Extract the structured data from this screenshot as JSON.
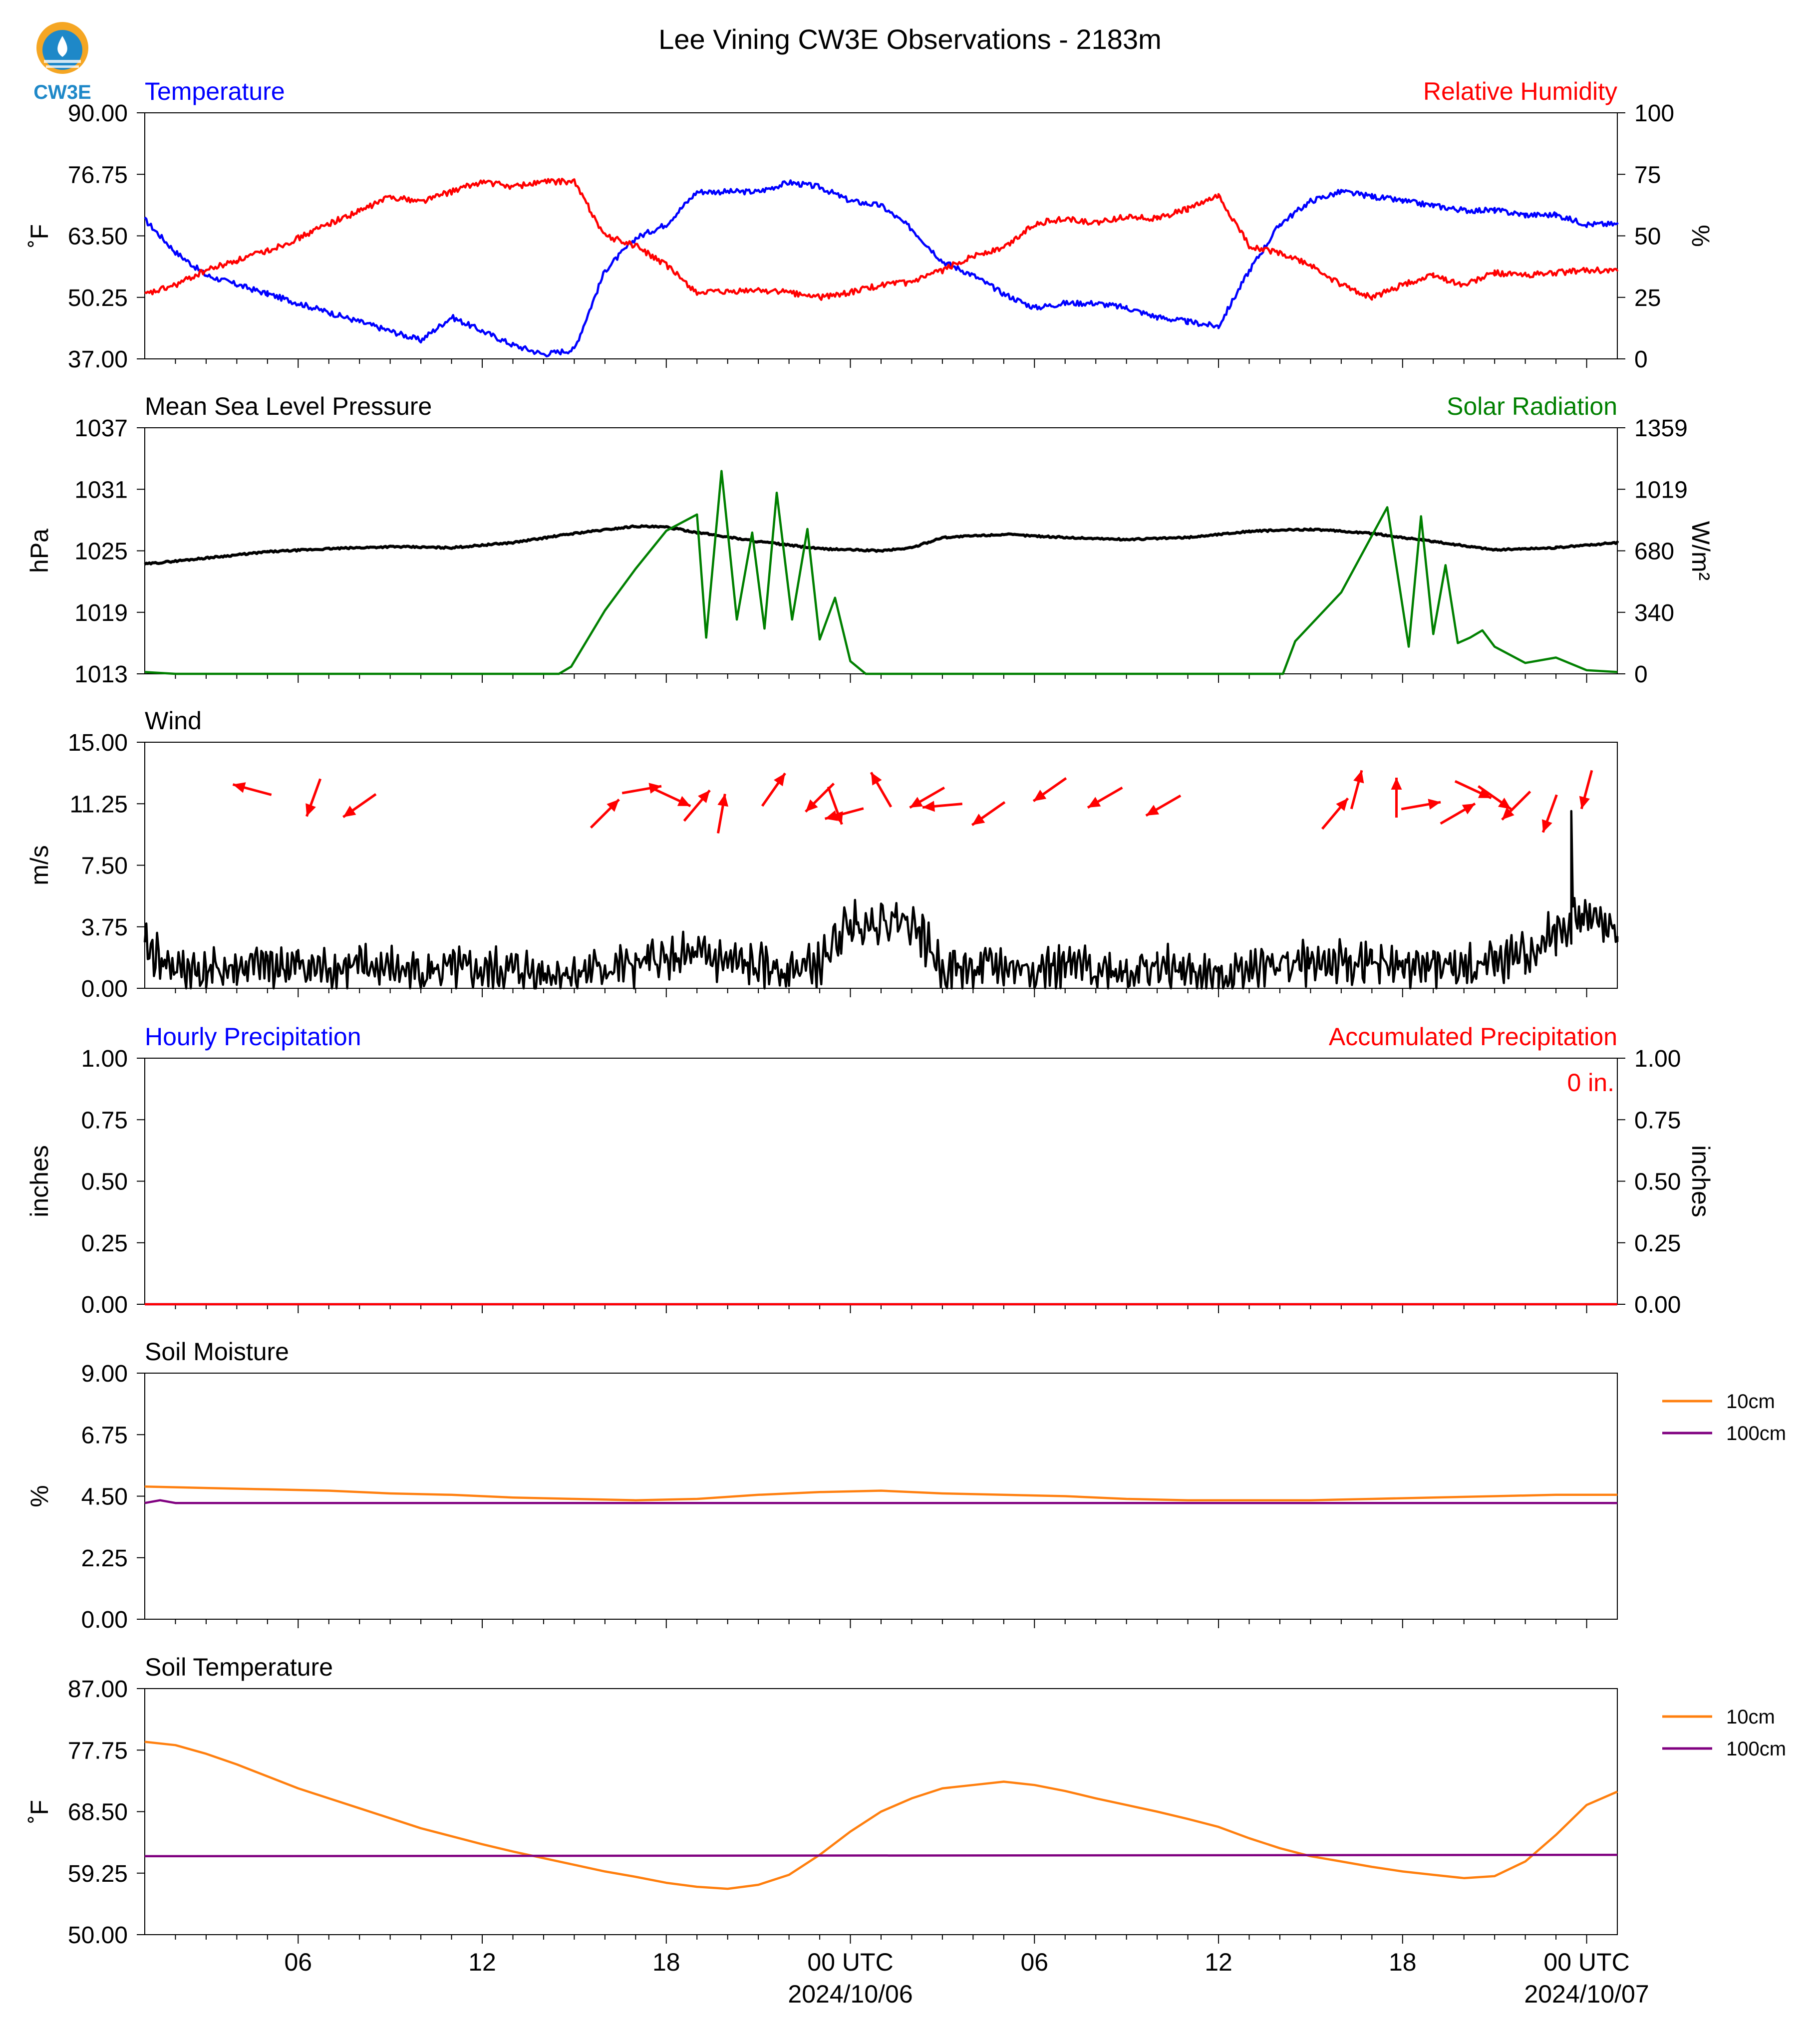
{
  "figure": {
    "title": "Lee Vining CW3E Observations - 2183m",
    "logo_text": "CW3E",
    "time_axis": {
      "tick_labels": [
        "06",
        "12",
        "18",
        "00 UTC",
        "06",
        "12",
        "18",
        "00 UTC"
      ],
      "date_labels": [
        "2024/10/06",
        "2024/10/07"
      ]
    }
  },
  "colors": {
    "temperature": "#0000ff",
    "humidity": "#ff0000",
    "pressure": "#000000",
    "solar": "#008000",
    "wind_speed": "#000000",
    "wind_arrows": "#ff0000",
    "soil_10cm": "#ff7f0e",
    "soil_100cm": "#800080",
    "logo": "#1e88c8"
  },
  "chart_data": [
    {
      "id": "temp_rh",
      "type": "line",
      "title_left": "Temperature",
      "title_right": "Relative Humidity",
      "ylabel": "˚F",
      "ylabel_right": "%",
      "ylim": [
        37.0,
        90.0
      ],
      "ylim_right": [
        0,
        100
      ],
      "yticks": [
        "37.00",
        "50.25",
        "63.50",
        "76.75",
        "90.00"
      ],
      "yticks_right": [
        "0",
        "25",
        "50",
        "75",
        "100"
      ],
      "xlim": [
        1,
        49
      ],
      "grid": false,
      "series": [
        {
          "name": "Temperature",
          "axis": "left",
          "x": [
            1,
            2,
            3,
            4,
            5,
            6,
            7,
            8,
            9,
            10,
            11,
            12,
            13,
            14,
            15,
            16,
            17,
            18,
            19,
            20,
            21,
            22,
            23,
            24,
            25,
            26,
            27,
            28,
            29,
            30,
            31,
            32,
            33,
            34,
            35,
            36,
            37,
            38,
            39,
            40,
            41,
            42,
            43,
            44,
            45,
            46,
            47,
            48,
            49
          ],
          "values": [
            67,
            60,
            55,
            53,
            51,
            49,
            47,
            45,
            43,
            41,
            46,
            43,
            40,
            38,
            39,
            56,
            63,
            66,
            73,
            73,
            73,
            75,
            74,
            71,
            70,
            65,
            58,
            55,
            51,
            48,
            49,
            49,
            48,
            46,
            45,
            44,
            56,
            66,
            71,
            73,
            72,
            71,
            70,
            69,
            69,
            68,
            68,
            66,
            66
          ]
        },
        {
          "name": "Relative Humidity",
          "axis": "right",
          "x": [
            1,
            2,
            3,
            4,
            5,
            6,
            7,
            8,
            9,
            10,
            11,
            12,
            13,
            14,
            15,
            16,
            17,
            18,
            19,
            20,
            21,
            22,
            23,
            24,
            25,
            26,
            27,
            28,
            29,
            30,
            31,
            32,
            33,
            34,
            35,
            36,
            37,
            38,
            39,
            40,
            41,
            42,
            43,
            44,
            45,
            46,
            47,
            48,
            49
          ],
          "values": [
            26,
            30,
            36,
            40,
            44,
            49,
            55,
            60,
            66,
            64,
            68,
            72,
            70,
            72,
            72,
            50,
            46,
            38,
            27,
            27,
            28,
            27,
            25,
            27,
            30,
            31,
            36,
            42,
            45,
            55,
            57,
            55,
            58,
            57,
            61,
            66,
            46,
            43,
            38,
            30,
            25,
            30,
            34,
            30,
            35,
            34,
            35,
            36,
            36
          ]
        }
      ]
    },
    {
      "id": "pressure_solar",
      "type": "line",
      "title_left": "Mean Sea Level Pressure",
      "title_right": "Solar Radiation",
      "ylabel": "hPa",
      "ylabel_right": "W/m²",
      "ylim": [
        1013,
        1037
      ],
      "ylim_right": [
        0,
        1359
      ],
      "yticks": [
        "1013",
        "1019",
        "1025",
        "1031",
        "1037"
      ],
      "yticks_right": [
        "0",
        "340",
        "680",
        "1019",
        "1359"
      ],
      "xlim": [
        1,
        49
      ],
      "grid": false,
      "series": [
        {
          "name": "Mean Sea Level Pressure",
          "axis": "left",
          "x": [
            1,
            3,
            5,
            7,
            9,
            11,
            13,
            15,
            17,
            18,
            19,
            21,
            23,
            25,
            26,
            27,
            29,
            31,
            33,
            35,
            37,
            39,
            41,
            43,
            45,
            47,
            49
          ],
          "values": [
            1023.7,
            1024.3,
            1024.9,
            1025.2,
            1025.4,
            1025.3,
            1025.8,
            1026.7,
            1027.4,
            1027.3,
            1026.8,
            1025.9,
            1025.2,
            1025.0,
            1025.3,
            1026.3,
            1026.6,
            1026.3,
            1026.1,
            1026.3,
            1026.9,
            1027.1,
            1026.7,
            1025.9,
            1025.1,
            1025.3,
            1025.8
          ]
        },
        {
          "name": "Solar Radiation",
          "axis": "right",
          "x": [
            1,
            2,
            3,
            5,
            7,
            9,
            11,
            13,
            14.5,
            14.9,
            16,
            17,
            18,
            19,
            19.3,
            19.8,
            20.3,
            20.8,
            21.2,
            21.6,
            22.1,
            22.6,
            23,
            23.5,
            24,
            24.5,
            25,
            25.5,
            26,
            27,
            29,
            31,
            33,
            35,
            37,
            38.1,
            38.5,
            40,
            41.5,
            42.2,
            42.6,
            43,
            43.4,
            43.8,
            44.2,
            44.6,
            45,
            46,
            47,
            48,
            49
          ],
          "values": [
            10,
            0,
            0,
            0,
            0,
            0,
            0,
            0,
            0,
            40,
            350,
            580,
            790,
            880,
            200,
            1120,
            300,
            780,
            250,
            1000,
            300,
            800,
            190,
            420,
            70,
            0,
            0,
            0,
            0,
            0,
            0,
            0,
            0,
            0,
            0,
            0,
            180,
            450,
            920,
            150,
            870,
            220,
            600,
            170,
            200,
            240,
            150,
            60,
            90,
            20,
            10
          ]
        }
      ]
    },
    {
      "id": "wind",
      "type": "line",
      "title_left": "Wind",
      "ylabel": "m/s",
      "ylim": [
        0,
        15
      ],
      "yticks": [
        "0.00",
        "3.75",
        "7.50",
        "11.25",
        "15.00"
      ],
      "xlim": [
        1,
        49
      ],
      "grid": false,
      "series": [
        {
          "name": "Wind Speed",
          "x": [
            1,
            2,
            3,
            4,
            5,
            6,
            7,
            8,
            9,
            10,
            11,
            12,
            13,
            14,
            15,
            16,
            17,
            18,
            19,
            20,
            21,
            22,
            23,
            24,
            25,
            26,
            27,
            28,
            29,
            30,
            31,
            32,
            33,
            34,
            35,
            36,
            37,
            38,
            39,
            40,
            41,
            42,
            43,
            44,
            45,
            46,
            47,
            48,
            49
          ],
          "values": [
            2.5,
            1.2,
            1.0,
            1.2,
            1.4,
            1.3,
            1.2,
            1.3,
            1.2,
            1.0,
            1.1,
            1.0,
            1.1,
            1.0,
            0.9,
            1.2,
            1.4,
            1.8,
            1.9,
            1.6,
            1.2,
            1.2,
            1.4,
            4.0,
            4.1,
            4.2,
            1.2,
            1.2,
            1.3,
            1.2,
            1.3,
            1.2,
            1.1,
            1.2,
            1.0,
            0.6,
            1.4,
            1.5,
            1.6,
            1.5,
            1.4,
            1.4,
            1.3,
            1.2,
            1.6,
            2.0,
            3.5,
            4.5,
            3.0
          ]
        }
      ],
      "wind_arrows": [
        {
          "x": 4.5,
          "dir_deg": 285
        },
        {
          "x": 6.5,
          "dir_deg": 200
        },
        {
          "x": 8.0,
          "dir_deg": 235
        },
        {
          "x": 16.0,
          "dir_deg": 45
        },
        {
          "x": 17.2,
          "dir_deg": 80
        },
        {
          "x": 18.2,
          "dir_deg": 115
        },
        {
          "x": 19.0,
          "dir_deg": 40
        },
        {
          "x": 19.8,
          "dir_deg": 10
        },
        {
          "x": 21.5,
          "dir_deg": 35
        },
        {
          "x": 23.0,
          "dir_deg": 225
        },
        {
          "x": 23.5,
          "dir_deg": 160
        },
        {
          "x": 23.8,
          "dir_deg": 255
        },
        {
          "x": 25.0,
          "dir_deg": 330
        },
        {
          "x": 26.5,
          "dir_deg": 240
        },
        {
          "x": 27.0,
          "dir_deg": 265
        },
        {
          "x": 28.5,
          "dir_deg": 235
        },
        {
          "x": 30.5,
          "dir_deg": 235
        },
        {
          "x": 32.3,
          "dir_deg": 240
        },
        {
          "x": 34.2,
          "dir_deg": 240
        },
        {
          "x": 39.8,
          "dir_deg": 40
        },
        {
          "x": 40.5,
          "dir_deg": 15
        },
        {
          "x": 41.8,
          "dir_deg": 0
        },
        {
          "x": 42.6,
          "dir_deg": 80
        },
        {
          "x": 43.8,
          "dir_deg": 60
        },
        {
          "x": 44.3,
          "dir_deg": 115
        },
        {
          "x": 45.0,
          "dir_deg": 125
        },
        {
          "x": 45.7,
          "dir_deg": 225
        },
        {
          "x": 46.8,
          "dir_deg": 200
        },
        {
          "x": 48.0,
          "dir_deg": 195
        }
      ]
    },
    {
      "id": "precip",
      "type": "line",
      "title_left": "Hourly Precipitation",
      "title_right": "Accumulated Precipitation",
      "ylabel": "inches",
      "ylabel_right": "inches",
      "ylim": [
        0,
        1
      ],
      "ylim_right": [
        0,
        1
      ],
      "yticks": [
        "0.00",
        "0.25",
        "0.50",
        "0.75",
        "1.00"
      ],
      "yticks_right": [
        "0.00",
        "0.25",
        "0.50",
        "0.75",
        "1.00"
      ],
      "annotation": "0 in.",
      "xlim": [
        1,
        49
      ],
      "grid": false,
      "series": [
        {
          "name": "Hourly Precipitation",
          "axis": "left",
          "x": [
            1,
            49
          ],
          "values": [
            0,
            0
          ]
        },
        {
          "name": "Accumulated Precipitation",
          "axis": "right",
          "x": [
            1,
            49
          ],
          "values": [
            0,
            0
          ]
        }
      ]
    },
    {
      "id": "soil_moisture",
      "type": "line",
      "title_left": "Soil Moisture",
      "ylabel": "%",
      "ylim": [
        0,
        9
      ],
      "yticks": [
        "0.00",
        "2.25",
        "4.50",
        "6.75",
        "9.00"
      ],
      "xlim": [
        1,
        49
      ],
      "grid": false,
      "legend": "right",
      "series": [
        {
          "name": "10cm",
          "x": [
            1,
            3,
            5,
            7,
            9,
            11,
            13,
            15,
            17,
            19,
            21,
            23,
            25,
            27,
            29,
            31,
            33,
            35,
            37,
            39,
            41,
            43,
            45,
            47,
            49
          ],
          "values": [
            4.85,
            4.8,
            4.75,
            4.7,
            4.6,
            4.55,
            4.45,
            4.4,
            4.35,
            4.4,
            4.55,
            4.65,
            4.7,
            4.6,
            4.55,
            4.5,
            4.4,
            4.35,
            4.35,
            4.35,
            4.4,
            4.45,
            4.5,
            4.55,
            4.55
          ]
        },
        {
          "name": "100cm",
          "x": [
            1,
            1.5,
            2,
            49
          ],
          "values": [
            4.25,
            4.35,
            4.25,
            4.25
          ]
        }
      ]
    },
    {
      "id": "soil_temperature",
      "type": "line",
      "title_left": "Soil Temperature",
      "ylabel": "˚F",
      "ylim": [
        50,
        87
      ],
      "yticks": [
        "50.00",
        "59.25",
        "68.50",
        "77.75",
        "87.00"
      ],
      "xlim": [
        1,
        49
      ],
      "grid": false,
      "legend": "right",
      "series": [
        {
          "name": "10cm",
          "x": [
            1,
            2,
            3,
            4,
            5,
            6,
            7,
            8,
            9,
            10,
            11,
            12,
            13,
            14,
            15,
            16,
            17,
            18,
            19,
            20,
            21,
            22,
            23,
            24,
            25,
            26,
            27,
            28,
            29,
            30,
            31,
            32,
            33,
            34,
            35,
            36,
            37,
            38,
            39,
            40,
            41,
            42,
            43,
            44,
            45,
            46,
            47,
            48,
            49
          ],
          "values": [
            79.0,
            78.5,
            77.2,
            75.6,
            73.8,
            72.0,
            70.5,
            69.0,
            67.5,
            66.0,
            64.8,
            63.6,
            62.5,
            61.5,
            60.5,
            59.5,
            58.7,
            57.8,
            57.2,
            56.9,
            57.5,
            59.0,
            62.0,
            65.5,
            68.5,
            70.5,
            72.0,
            72.5,
            73.0,
            72.5,
            71.6,
            70.5,
            69.5,
            68.5,
            67.4,
            66.2,
            64.5,
            63.0,
            61.8,
            61.0,
            60.2,
            59.5,
            59.0,
            58.5,
            58.8,
            61.0,
            65.0,
            69.5,
            71.5
          ]
        },
        {
          "name": "100cm",
          "x": [
            1,
            49
          ],
          "values": [
            61.8,
            62.0
          ]
        }
      ]
    }
  ]
}
